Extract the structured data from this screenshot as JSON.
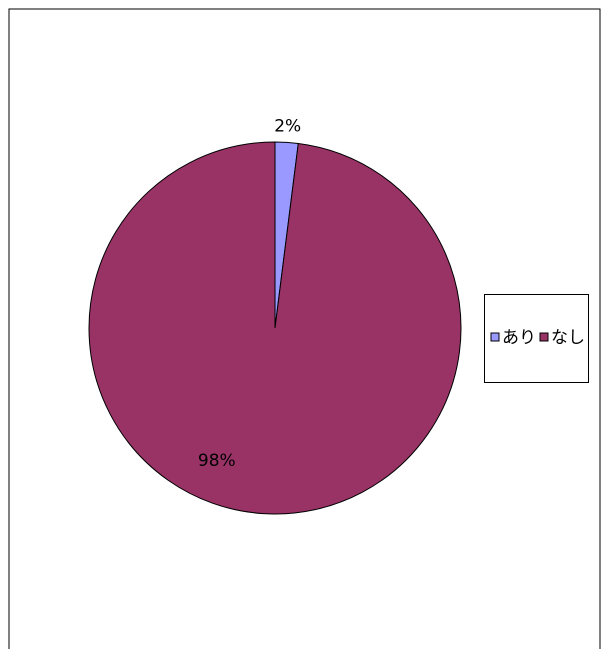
{
  "chart_data": {
    "type": "pie",
    "categories": [
      "あり",
      "なし"
    ],
    "values": [
      2,
      98
    ],
    "value_labels": [
      "2%",
      "98%"
    ],
    "colors": [
      "#9999ff",
      "#993366"
    ],
    "legend": "right"
  }
}
